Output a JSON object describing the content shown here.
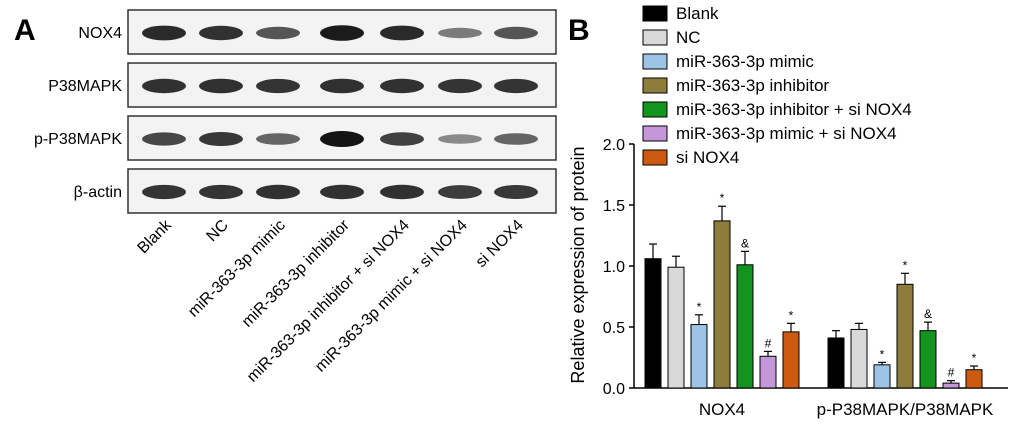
{
  "panel_a": {
    "letter": "A",
    "rows": [
      {
        "label": "NOX4",
        "intensities": [
          0.85,
          0.8,
          0.55,
          0.95,
          0.85,
          0.3,
          0.55
        ]
      },
      {
        "label": "P38MAPK",
        "intensities": [
          0.8,
          0.82,
          0.78,
          0.82,
          0.8,
          0.78,
          0.78
        ]
      },
      {
        "label": "p-P38MAPK",
        "intensities": [
          0.65,
          0.75,
          0.45,
          1.0,
          0.7,
          0.2,
          0.45
        ]
      },
      {
        "label": "β-actin",
        "intensities": [
          0.78,
          0.78,
          0.8,
          0.8,
          0.8,
          0.72,
          0.75
        ]
      }
    ],
    "lanes": [
      "Blank",
      "NC",
      "miR-363-3p mimic",
      "miR-363-3p inhibitor",
      "miR-363-3p inhibitor + si NOX4",
      "miR-363-3p mimic + si NOX4",
      "si NOX4"
    ]
  },
  "panel_b": {
    "letter": "B",
    "chart_data": {
      "type": "bar",
      "categories": [
        "NOX4",
        "p-P38MAPK/P38MAPK"
      ],
      "ylabel": "Relative expression of protein",
      "ylim": [
        0,
        2.0
      ],
      "yticks": [
        "0.0",
        "0.5",
        "1.0",
        "1.5",
        "2.0"
      ],
      "legend_position": "top",
      "series": [
        {
          "name": "Blank",
          "color": "#000000",
          "values": [
            1.06,
            0.41
          ],
          "errors": [
            0.12,
            0.06
          ],
          "marks": [
            "",
            ""
          ]
        },
        {
          "name": "NC",
          "color": "#d9d9d9",
          "values": [
            0.99,
            0.48
          ],
          "errors": [
            0.09,
            0.05
          ],
          "marks": [
            "",
            ""
          ]
        },
        {
          "name": "miR-363-3p mimic",
          "color": "#9dc3e6",
          "values": [
            0.52,
            0.19
          ],
          "errors": [
            0.08,
            0.02
          ],
          "marks": [
            "*",
            "*"
          ]
        },
        {
          "name": "miR-363-3p inhibitor",
          "color": "#8c7d3a",
          "values": [
            1.37,
            0.85
          ],
          "errors": [
            0.12,
            0.09
          ],
          "marks": [
            "*",
            "*"
          ]
        },
        {
          "name": "miR-363-3p inhibitor + si NOX4",
          "color": "#12941e",
          "values": [
            1.01,
            0.47
          ],
          "errors": [
            0.11,
            0.07
          ],
          "marks": [
            "&",
            "&"
          ]
        },
        {
          "name": "miR-363-3p mimic + si NOX4",
          "color": "#c497d8",
          "values": [
            0.26,
            0.04
          ],
          "errors": [
            0.04,
            0.02
          ],
          "marks": [
            "#",
            "#"
          ]
        },
        {
          "name": "si NOX4",
          "color": "#cc5a10",
          "values": [
            0.46,
            0.15
          ],
          "errors": [
            0.07,
            0.03
          ],
          "marks": [
            "*",
            "*"
          ]
        }
      ]
    }
  }
}
